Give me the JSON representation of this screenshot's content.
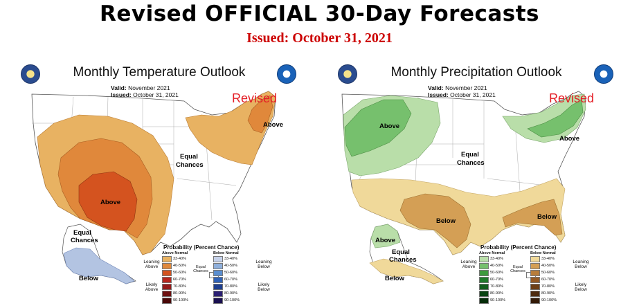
{
  "title": "Revised OFFICIAL 30-Day Forecasts",
  "issued_line": "Issued: October 31, 2021",
  "colors": {
    "revised_red": "#e41e26",
    "temp_33_40": "#e8b262",
    "temp_40_50": "#e0883b",
    "temp_50_60": "#d4531f",
    "precip_above_33_40": "#b9dea9",
    "precip_above_40_50": "#76c06d",
    "precip_below_33_40": "#f0d99a",
    "precip_below_40_50": "#d49f55"
  },
  "temperature": {
    "title": "Monthly Temperature Outlook",
    "valid_label": "Valid:",
    "valid_value": "November 2021",
    "issued_label": "Issued:",
    "issued_value": "October 31, 2021",
    "revised": "Revised",
    "labels": {
      "above_ne": "Above",
      "above_sw": "Above",
      "equal": "Equal",
      "chances": "Chances",
      "ak_equal": "Equal",
      "ak_chances": "Chances",
      "ak_below": "Below"
    },
    "legend": {
      "title": "Probability (Percent Chance)",
      "above_head": "Above Normal",
      "below_head": "Below Normal",
      "above_rows": [
        "33-40%",
        "40-50%",
        "50-60%",
        "60-70%",
        "70-80%",
        "80-90%",
        "90-100%"
      ],
      "below_rows": [
        "33-40%",
        "40-50%",
        "50-60%",
        "60-70%",
        "70-80%",
        "80-90%",
        "90-100%"
      ],
      "leaning_above": "Leaning Above",
      "likely_above": "Likely Above",
      "leaning_below": "Leaning Below",
      "likely_below": "Likely Below",
      "equal": "Equal Chances"
    }
  },
  "precipitation": {
    "title": "Monthly Precipitation Outlook",
    "valid_label": "Valid:",
    "valid_value": "November 2021",
    "issued_label": "Issued:",
    "issued_value": "October 31, 2021",
    "revised": "Revised",
    "labels": {
      "above_nw": "Above",
      "above_ne": "Above",
      "equal": "Equal",
      "chances": "Chances",
      "below_s": "Below",
      "below_se": "Below",
      "ak_above": "Above",
      "ak_equal": "Equal",
      "ak_chances": "Chances",
      "ak_below": "Below"
    },
    "legend": {
      "title": "Probability (Percent Chance)",
      "above_head": "Above Normal",
      "below_head": "Below Normal",
      "above_rows": [
        "33-40%",
        "40-50%",
        "50-60%",
        "60-70%",
        "70-80%",
        "80-90%",
        "90-100%"
      ],
      "below_rows": [
        "33-40%",
        "40-50%",
        "50-60%",
        "60-70%",
        "70-80%",
        "80-90%",
        "90-100%"
      ],
      "leaning_above": "Leaning Above",
      "leaning_below": "Leaning Below",
      "likely_below": "Likely Below",
      "equal": "Equal Chances"
    }
  }
}
